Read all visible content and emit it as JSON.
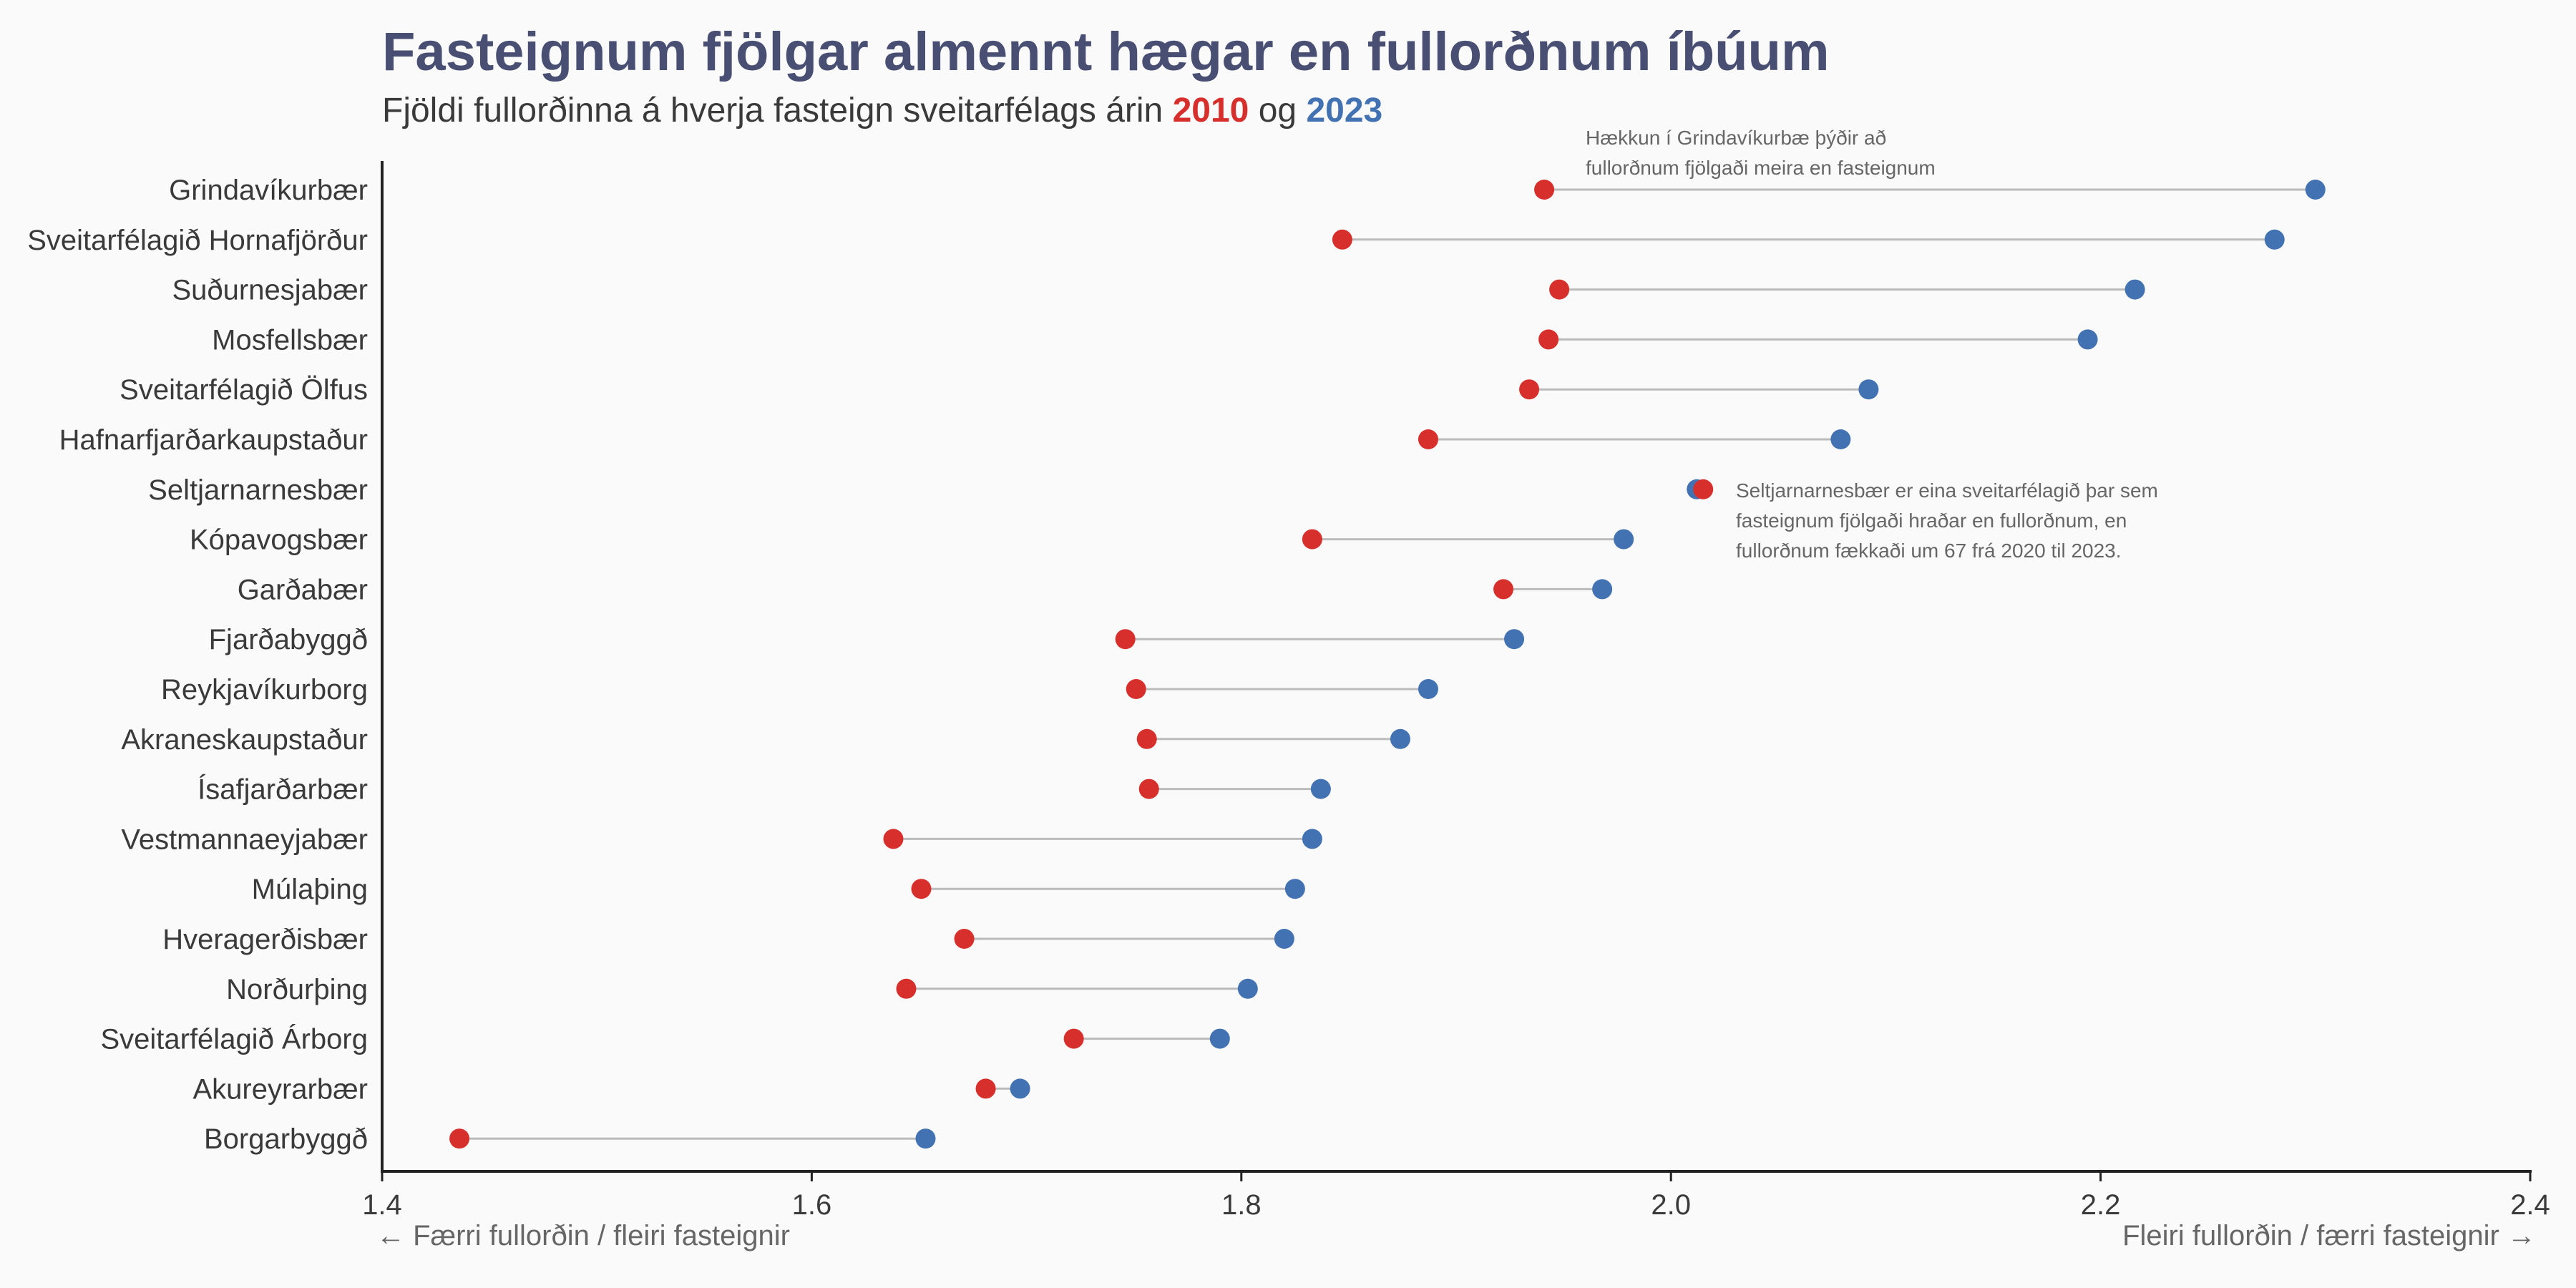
{
  "colors": {
    "y2010": "#d7302c",
    "y2023": "#4372b3",
    "title": "#484f72",
    "text": "#3a3a3a",
    "note": "#666666",
    "segment": "#bbbbbb",
    "axis": "#222222"
  },
  "chart_data": {
    "type": "dumbbell",
    "title": "Fasteignum fjölgar almennt hægar en fullorðnum íbúum",
    "subtitle": {
      "prefix": "Fjöldi fullorðinna á hverja fasteign sveitarfélags árin ",
      "year1": "2010",
      "middle": " og ",
      "year2": "2023"
    },
    "xlim": [
      1.4,
      2.4
    ],
    "x_ticks": [
      1.4,
      1.6,
      1.8,
      2.0,
      2.2,
      2.4
    ],
    "x_tick_labels": [
      "1.4",
      "1.6",
      "1.8",
      "2.0",
      "2.2",
      "2.4"
    ],
    "xlabel_left": "← Færri fullorðin / fleiri fasteignir",
    "xlabel_right": "Fleiri fullorðin / færri fasteignir →",
    "series": [
      {
        "name": "2010",
        "key": "v2010"
      },
      {
        "name": "2023",
        "key": "v2023"
      }
    ],
    "rows": [
      {
        "name": "Grindavíkurbær",
        "v2010": 1.941,
        "v2023": 2.3
      },
      {
        "name": "Sveitarfélagið Hornafjörður",
        "v2010": 1.847,
        "v2023": 2.281
      },
      {
        "name": "Suðurnesjabær",
        "v2010": 1.948,
        "v2023": 2.216
      },
      {
        "name": "Mosfellsbær",
        "v2010": 1.943,
        "v2023": 2.194
      },
      {
        "name": "Sveitarfélagið Ölfus",
        "v2010": 1.934,
        "v2023": 2.092
      },
      {
        "name": "Hafnarfjarðarkaupstaður",
        "v2010": 1.887,
        "v2023": 2.079
      },
      {
        "name": "Seltjarnarnesbær",
        "v2010": 2.015,
        "v2023": 2.012
      },
      {
        "name": "Kópavogsbær",
        "v2010": 1.833,
        "v2023": 1.978
      },
      {
        "name": "Garðabær",
        "v2010": 1.922,
        "v2023": 1.968
      },
      {
        "name": "Fjarðabyggð",
        "v2010": 1.746,
        "v2023": 1.927
      },
      {
        "name": "Reykjavíkurborg",
        "v2010": 1.751,
        "v2023": 1.887
      },
      {
        "name": "Akraneskaupstaður",
        "v2010": 1.756,
        "v2023": 1.874
      },
      {
        "name": "Ísafjarðarbær",
        "v2010": 1.757,
        "v2023": 1.837
      },
      {
        "name": "Vestmannaeyjabær",
        "v2010": 1.638,
        "v2023": 1.833
      },
      {
        "name": "Múlaþing",
        "v2010": 1.651,
        "v2023": 1.825
      },
      {
        "name": "Hveragerðisbær",
        "v2010": 1.671,
        "v2023": 1.82
      },
      {
        "name": "Norðurþing",
        "v2010": 1.644,
        "v2023": 1.803
      },
      {
        "name": "Sveitarfélagið Árborg",
        "v2010": 1.722,
        "v2023": 1.79
      },
      {
        "name": "Akureyrarbær",
        "v2010": 1.681,
        "v2023": 1.697
      },
      {
        "name": "Borgarbyggð",
        "v2010": 1.436,
        "v2023": 1.653
      }
    ],
    "annotations": [
      {
        "name": "annotation-grindavik",
        "lines": [
          "Hækkun í Grindavíkurbæ þýðir að",
          "fullorðnum fjölgaði meira en fasteignum"
        ]
      },
      {
        "name": "annotation-seltjarnarnes",
        "lines": [
          "Seltjarnarnesbær er eina sveitarfélagið þar sem",
          "fasteignum fjölgaði hraðar en fullorðnum, en",
          "fullorðnum fækkaði um 67 frá 2020 til 2023."
        ]
      }
    ]
  }
}
